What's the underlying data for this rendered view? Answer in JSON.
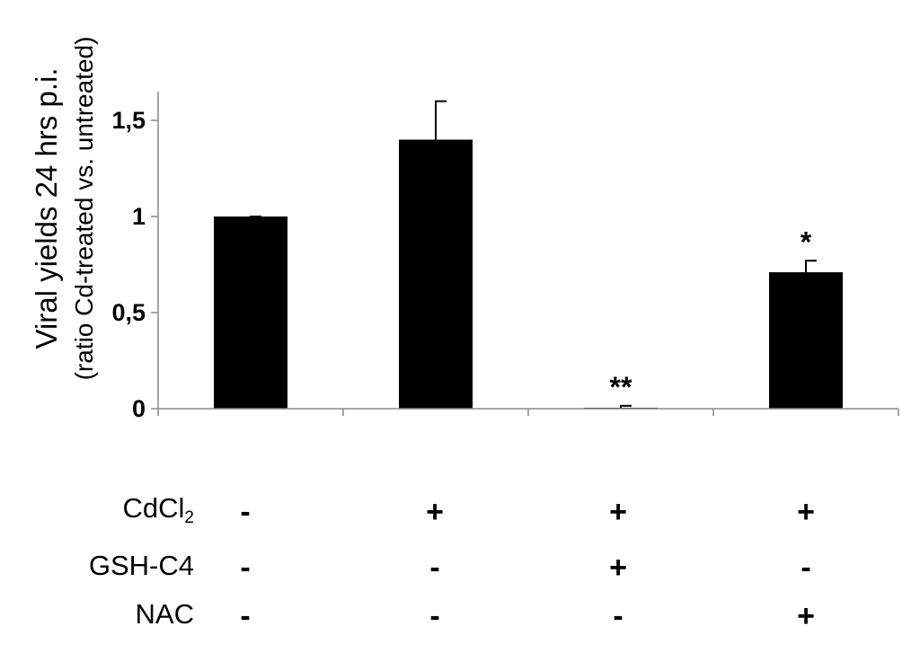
{
  "chart_data": {
    "type": "bar",
    "ylabel": [
      "Viral yields 24 hrs p.i.",
      "(ratio Cd-treated vs. untreated)"
    ],
    "yticks": [
      "0",
      "0,5",
      "1",
      "1,5"
    ],
    "ylim": [
      0,
      1.65
    ],
    "values": [
      1.0,
      1.4,
      0.005,
      0.71
    ],
    "errors": [
      0.0,
      0.2,
      0.01,
      0.06
    ],
    "significance": [
      "",
      "",
      "**",
      "*"
    ],
    "bar_color": "#000000",
    "treatments": [
      {
        "name": "CdCl",
        "sub": "2",
        "values": [
          "-",
          "+",
          "+",
          "+"
        ]
      },
      {
        "name": "GSH-C4",
        "sub": "",
        "values": [
          "-",
          "-",
          "+",
          "-"
        ]
      },
      {
        "name": "NAC",
        "sub": "",
        "values": [
          "-",
          "-",
          "-",
          "+"
        ]
      }
    ]
  }
}
